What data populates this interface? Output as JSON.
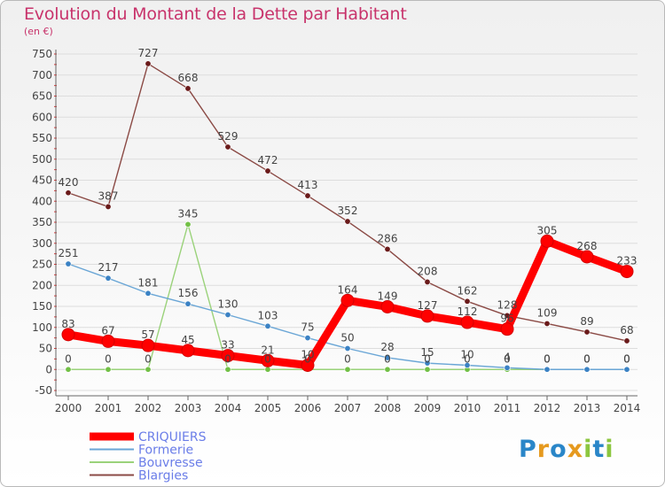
{
  "header": {
    "title": "Evolution du Montant de la Dette par Habitant",
    "subtitle": "(en €)"
  },
  "logo": {
    "text": "Proxiti",
    "letters": [
      "P",
      "r",
      "o",
      "x",
      "i",
      "t",
      "i"
    ],
    "colors": [
      "#2a86c8",
      "#e69a1f",
      "#2a86c8",
      "#e69a1f",
      "#8cc63f",
      "#2a86c8",
      "#8cc63f"
    ]
  },
  "colors": {
    "axis": "#666666",
    "grid": "#dddddd",
    "label": "#444444",
    "title": "#c8336b",
    "legend_text": "#6a7de8"
  },
  "chart_data": {
    "type": "line",
    "title": "Evolution du Montant de la Dette par Habitant",
    "subtitle": "(en €)",
    "xlabel": "",
    "ylabel": "",
    "ylim": [
      -50,
      750
    ],
    "y_ticks": [
      -50,
      0,
      50,
      100,
      150,
      200,
      250,
      300,
      350,
      400,
      450,
      500,
      550,
      600,
      650,
      700,
      750
    ],
    "x": [
      "2000",
      "2001",
      "2002",
      "2003",
      "2004",
      "2005",
      "2006",
      "2007",
      "2008",
      "2009",
      "2010",
      "2011",
      "2012",
      "2013",
      "2014"
    ],
    "grid": "horizontal",
    "legend_position": "bottom-left",
    "series": [
      {
        "name": "CRIQUIERS",
        "color": "#ff0000",
        "marker": "#ff0000",
        "values": [
          83,
          67,
          57,
          45,
          33,
          21,
          10,
          164,
          149,
          127,
          112,
          96,
          305,
          268,
          233
        ],
        "labels": [
          "83",
          "67",
          "57",
          "45",
          "33",
          "21",
          "10",
          "164",
          "149",
          "127",
          "112",
          "96",
          "305",
          "268",
          "233"
        ]
      },
      {
        "name": "Formerie",
        "color": "#6aa6d6",
        "marker": "#3b82c4",
        "values": [
          251,
          217,
          181,
          156,
          130,
          103,
          75,
          50,
          28,
          15,
          10,
          4,
          0,
          0,
          0
        ],
        "labels": [
          "251",
          "217",
          "181",
          "156",
          "130",
          "103",
          "75",
          "50",
          "28",
          "15",
          "10",
          "4",
          "0",
          "0",
          "0"
        ]
      },
      {
        "name": "Bouvresse",
        "color": "#9ad27a",
        "marker": "#72c046",
        "values": [
          0,
          0,
          0,
          345,
          0,
          0,
          0,
          0,
          0,
          0,
          0,
          0,
          0,
          0,
          0
        ],
        "labels": [
          "0",
          "0",
          "0",
          "345",
          "0",
          "0",
          "0",
          "0",
          "0",
          "0",
          "0",
          "0",
          "0",
          "0",
          "0"
        ]
      },
      {
        "name": "Blargies",
        "color": "#8b4a45",
        "marker": "#6a1a1a",
        "values": [
          420,
          387,
          727,
          668,
          529,
          472,
          413,
          352,
          286,
          208,
          162,
          128,
          109,
          89,
          68
        ],
        "labels": [
          "420",
          "387",
          "727",
          "668",
          "529",
          "472",
          "413",
          "352",
          "286",
          "208",
          "162",
          "128",
          "109",
          "89",
          "68"
        ]
      }
    ]
  }
}
